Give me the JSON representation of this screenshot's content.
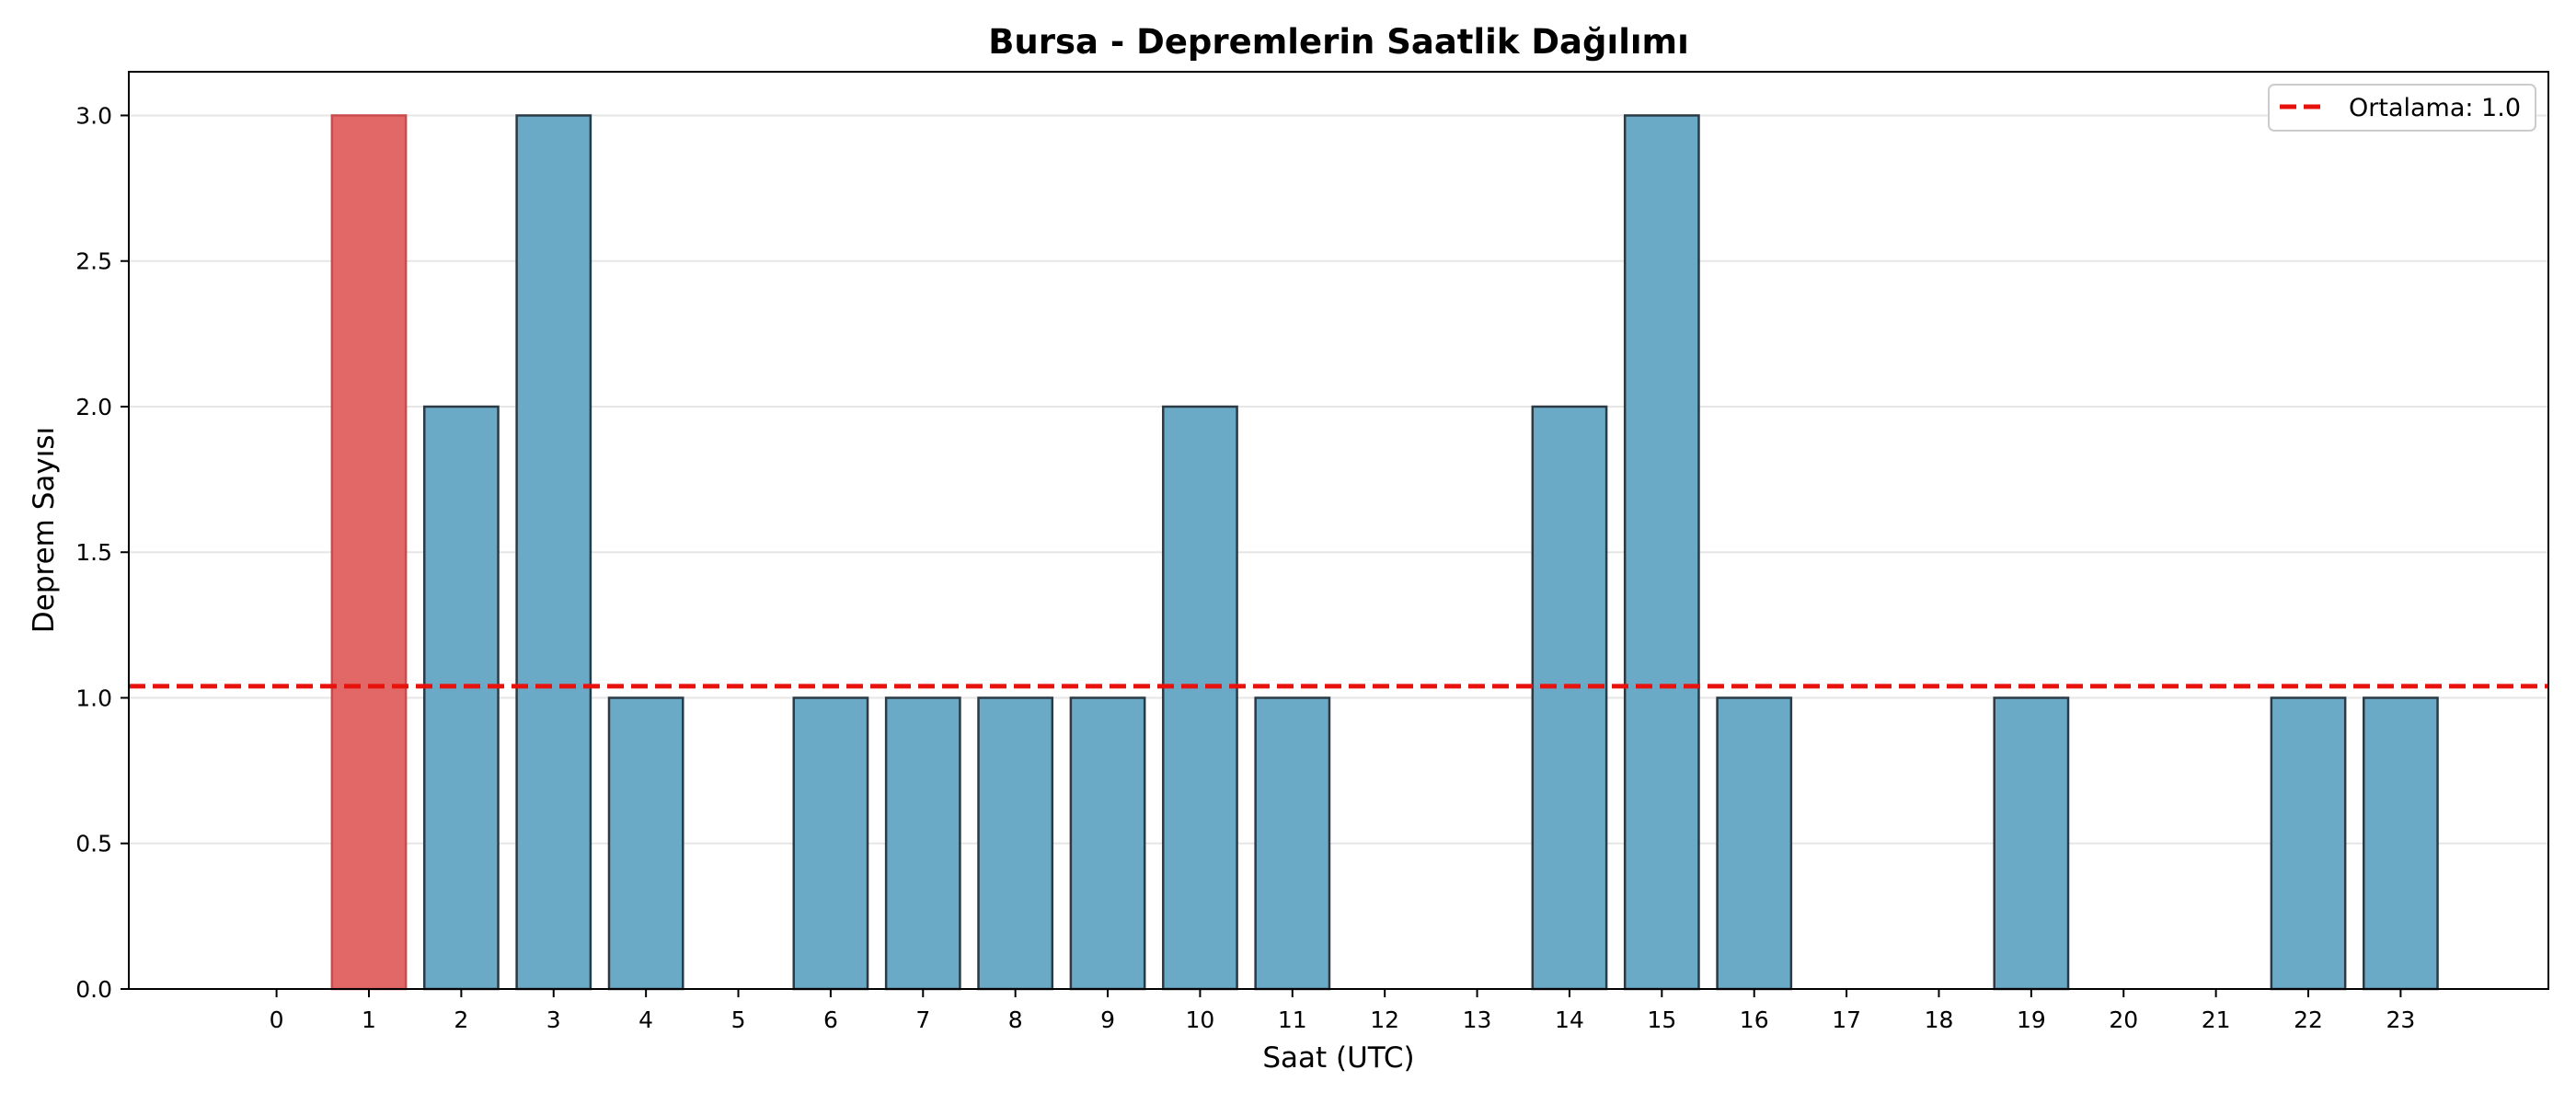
{
  "chart_data": {
    "type": "bar",
    "title": "Bursa - Depremlerin Saatlik Dağılımı",
    "xlabel": "Saat (UTC)",
    "ylabel": "Deprem Sayısı",
    "categories": [
      "0",
      "1",
      "2",
      "3",
      "4",
      "5",
      "6",
      "7",
      "8",
      "9",
      "10",
      "11",
      "12",
      "13",
      "14",
      "15",
      "16",
      "17",
      "18",
      "19",
      "20",
      "21",
      "22",
      "23"
    ],
    "values": [
      0,
      3,
      2,
      3,
      1,
      0,
      1,
      1,
      1,
      1,
      2,
      1,
      0,
      0,
      2,
      3,
      1,
      0,
      0,
      1,
      0,
      0,
      1,
      1
    ],
    "xlim": [
      -1.6,
      24.6
    ],
    "ylim": [
      0,
      3.15
    ],
    "yticks": [
      "0.0",
      "0.5",
      "1.0",
      "1.5",
      "2.0",
      "2.5",
      "3.0"
    ],
    "ytick_values": [
      0,
      0.5,
      1.0,
      1.5,
      2.0,
      2.5,
      3.0
    ],
    "grid": "horizontal",
    "highlight_index": 1,
    "mean_line": {
      "value": 1.04,
      "label": "Ortalama: 1.0"
    },
    "legend": {
      "position": "top-right",
      "entries": [
        "Ortalama: 1.0"
      ]
    },
    "colors": {
      "bar": "#6aaac6",
      "bar_edge": "#2b3a44",
      "highlight": "#e26868",
      "highlight_edge": "#c94b4b",
      "mean_line": "#e8120c",
      "grid": "#e6e6e6",
      "axes": "#000000"
    }
  }
}
